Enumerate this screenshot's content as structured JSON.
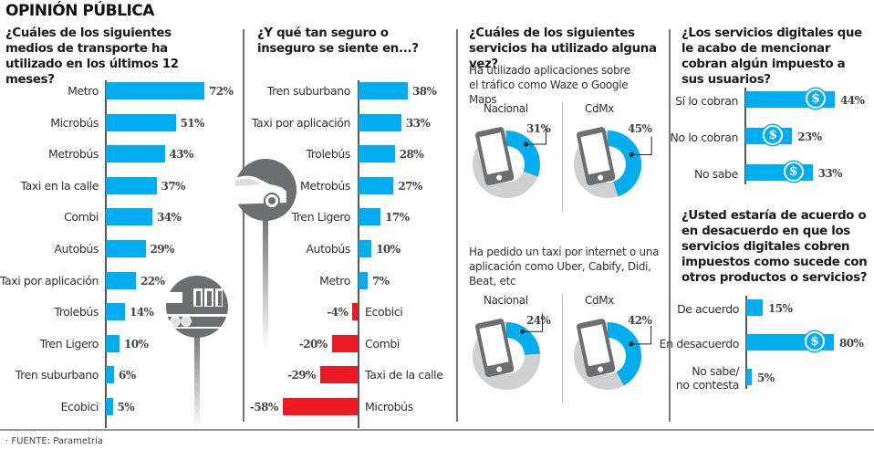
{
  "header": {
    "title": "OPINIÓN PÚBLICA"
  },
  "footer": {
    "source": "· FUENTE: Parametría"
  },
  "icons": {
    "car": "car-icon",
    "train": "train-icon",
    "phone": "smartphone-icon",
    "dollar": "dollar-coin-icon"
  },
  "colors": {
    "positive": "#00aeef",
    "negative": "#ed1c24",
    "donut_rest": "#d0d0d0",
    "icon_gray": "#6d6e70"
  },
  "chart_data": [
    {
      "id": "transport_used",
      "type": "bar",
      "orientation": "horizontal",
      "title": "¿Cuáles de los siguientes medios de transporte ha utilizado en los últimos 12 meses?",
      "categories": [
        "Metro",
        "Microbús",
        "Metrobús",
        "Taxi en la calle",
        "Combi",
        "Autobús",
        "Taxi por aplicación",
        "Trolebús",
        "Tren Ligero",
        "Tren suburbano",
        "Ecobici"
      ],
      "values": [
        72,
        51,
        43,
        37,
        34,
        29,
        22,
        14,
        10,
        6,
        5
      ],
      "labels": [
        "72%",
        "51%",
        "43%",
        "37%",
        "34%",
        "29%",
        "22%",
        "14%",
        "10%",
        "6%",
        "5%"
      ],
      "xlim": [
        0,
        100
      ],
      "unit": "%"
    },
    {
      "id": "safety",
      "type": "bar",
      "orientation": "horizontal",
      "title": "¿Y qué tan seguro o inseguro se siente en...?",
      "categories": [
        "Tren suburbano",
        "Taxi por aplicación",
        "Trolebús",
        "Metrobús",
        "Tren Ligero",
        "Autobús",
        "Metro",
        "Ecobici",
        "Combi",
        "Taxi de la calle",
        "Microbús"
      ],
      "values": [
        38,
        33,
        28,
        27,
        17,
        10,
        7,
        -4,
        -20,
        -29,
        -58
      ],
      "labels": [
        "38%",
        "33%",
        "28%",
        "27%",
        "17%",
        "10%",
        "7%",
        "-4%",
        "-20%",
        "-29%",
        "-58%"
      ],
      "xlim": [
        -60,
        60
      ],
      "unit": "%"
    },
    {
      "id": "services_used",
      "type": "pie",
      "variant": "donut",
      "title": "¿Cuáles de los siguientes servicios ha utilizado alguna vez?",
      "groups": [
        {
          "subtitle": "Ha utilizado aplicaciones sobre el tráfico como Waze o Google Maps",
          "series": [
            {
              "name": "Nacional",
              "value": 31,
              "label": "31%"
            },
            {
              "name": "CdMx",
              "value": 45,
              "label": "45%"
            }
          ]
        },
        {
          "subtitle": "Ha pedido un taxi por internet o una aplicación como Uber, Cabify, Didi, Beat, etc",
          "series": [
            {
              "name": "Nacional",
              "value": 24,
              "label": "24%"
            },
            {
              "name": "CdMx",
              "value": 42,
              "label": "42%"
            }
          ]
        }
      ],
      "unit": "%"
    },
    {
      "id": "tax_charged",
      "type": "bar",
      "orientation": "horizontal",
      "title": "¿Los servicios digitales que le acabo de mencionar cobran algún impuesto a sus usuarios?",
      "categories": [
        "Sí lo cobran",
        "No lo cobran",
        "No sabe"
      ],
      "values": [
        44,
        23,
        33
      ],
      "labels": [
        "44%",
        "23%",
        "33%"
      ],
      "coin": [
        true,
        true,
        true
      ],
      "xlim": [
        0,
        50
      ],
      "unit": "%"
    },
    {
      "id": "tax_agree",
      "type": "bar",
      "orientation": "horizontal",
      "title": "¿Usted estaría de acuerdo o en desacuerdo en que los servicios digitales cobren impuestos como sucede con otros productos o servicios?",
      "categories": [
        "De acuerdo",
        "En desacuerdo",
        "No sabe/\nno contesta"
      ],
      "category_lines": [
        [
          "De acuerdo"
        ],
        [
          "En desacuerdo"
        ],
        [
          "No sabe/",
          "no contesta"
        ]
      ],
      "values": [
        15,
        80,
        5
      ],
      "labels": [
        "15%",
        "80%",
        "5%"
      ],
      "coin": [
        false,
        true,
        false
      ],
      "xlim": [
        0,
        100
      ],
      "unit": "%"
    }
  ]
}
